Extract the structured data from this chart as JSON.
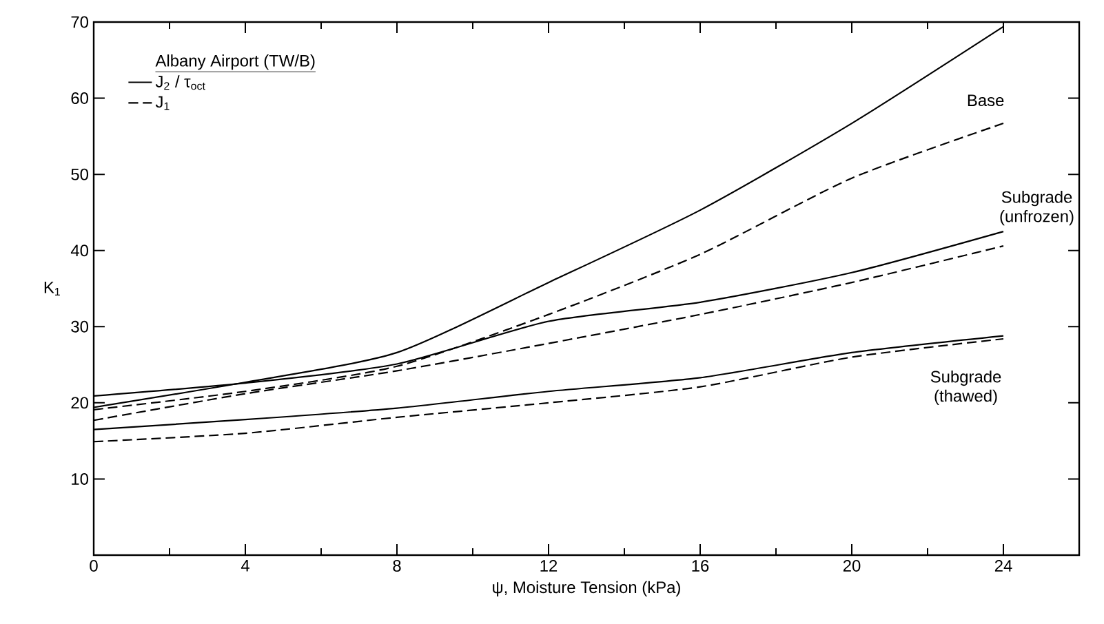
{
  "chart_data": {
    "type": "line",
    "xlabel": "ψ, Moisture Tension (kPa)",
    "ylabel": "K$_{1}$",
    "legend_title": "Albany Airport (TW/B)",
    "legend": "top left",
    "x": [
      0,
      4,
      8,
      12,
      16,
      20,
      24
    ],
    "series": [
      {
        "name": "J$_{2}$ / τ$_{oct}$",
        "color": "#000000",
        "line_style": "solid",
        "values": [
          19.4,
          22.7,
          26.6,
          35.8,
          45.3,
          56.7,
          69.4
        ]
      },
      {
        "name": "J$_{1}$",
        "color": "#000000",
        "line_style": "dashed",
        "values": [
          19.1,
          21.5,
          24.8,
          31.6,
          39.5,
          49.5,
          56.7
        ]
      },
      {
        "color": "#000000",
        "line_style": "solid",
        "values": [
          20.9,
          22.6,
          25.1,
          30.7,
          33.2,
          37.1,
          42.5
        ]
      },
      {
        "color": "#000000",
        "line_style": "dashed",
        "values": [
          17.7,
          21.2,
          24.2,
          27.8,
          31.6,
          35.8,
          40.6
        ]
      },
      {
        "color": "#000000",
        "line_style": "solid",
        "values": [
          16.5,
          17.8,
          19.3,
          21.5,
          23.3,
          26.6,
          28.8
        ]
      },
      {
        "color": "#000000",
        "line_style": "dashed",
        "values": [
          14.9,
          16.0,
          18.1,
          20.0,
          22.1,
          26.0,
          28.4
        ]
      }
    ],
    "xlim": [
      0,
      26
    ],
    "ylim": [
      0,
      70
    ],
    "xticks": [
      0,
      4,
      8,
      12,
      16,
      20,
      24
    ],
    "yticks": [
      {
        "value": 0,
        "label": null
      },
      10,
      20,
      30,
      40,
      50,
      60,
      70
    ],
    "annotations": [
      "Base",
      "Subgrade (unfrozen)",
      "Subgrade (thawed)"
    ]
  }
}
